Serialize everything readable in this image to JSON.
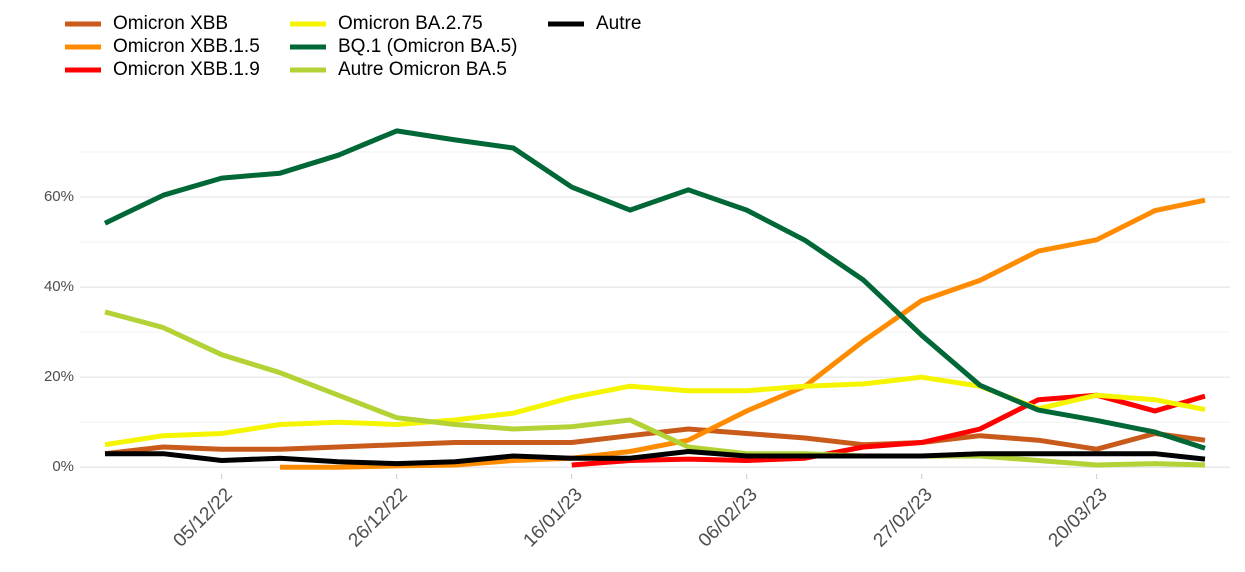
{
  "chart_data": {
    "type": "line",
    "x": [
      "2022-11-21",
      "2022-11-28",
      "2022-12-05",
      "2022-12-12",
      "2022-12-19",
      "2022-12-26",
      "2023-01-02",
      "2023-01-09",
      "2023-01-16",
      "2023-01-23",
      "2023-01-30",
      "2023-02-06",
      "2023-02-13",
      "2023-02-20",
      "2023-02-27",
      "2023-03-06",
      "2023-03-13",
      "2023-03-20",
      "2023-03-27",
      "2023-04-02"
    ],
    "series": [
      {
        "name": "Omicron XBB",
        "color": "#c85a1b",
        "values": [
          3,
          4.5,
          4,
          4,
          4.5,
          5,
          5.5,
          5.5,
          5.5,
          7,
          8.5,
          7.5,
          6.5,
          5,
          5.5,
          7,
          6,
          4,
          7.5,
          6
        ]
      },
      {
        "name": "Omicron XBB.1.5",
        "color": "#ff8c00",
        "values": [
          null,
          null,
          null,
          0,
          0,
          0.3,
          0.5,
          1.5,
          2,
          3.5,
          6,
          12.5,
          18,
          28,
          37,
          41.5,
          48,
          50.5,
          57,
          59.3
        ]
      },
      {
        "name": "Omicron XBB.1.9",
        "color": "#ff0000",
        "values": [
          null,
          null,
          null,
          null,
          null,
          null,
          null,
          null,
          0.5,
          1.5,
          1.8,
          1.5,
          2,
          4.5,
          5.5,
          8.5,
          15,
          16,
          12.5,
          15.8
        ]
      },
      {
        "name": "Omicron BA.2.75",
        "color": "#f5f500",
        "values": [
          5,
          7,
          7.5,
          9.5,
          10,
          9.5,
          10.5,
          12,
          15.5,
          18,
          17,
          17,
          18,
          18.5,
          20,
          18,
          13,
          16,
          15,
          12.8
        ]
      },
      {
        "name": "BQ.1 (Omicron BA.5)",
        "color": "#006837",
        "values": [
          54.2,
          60.4,
          64.2,
          65.3,
          69.3,
          74.7,
          72.7,
          70.9,
          62.2,
          57.1,
          61.6,
          57.1,
          50.4,
          41.6,
          29.3,
          18.2,
          12.7,
          10.4,
          7.8,
          4.2
        ]
      },
      {
        "name": "Autre Omicron BA.5",
        "color": "#b2d235",
        "values": [
          34.5,
          31,
          25,
          21,
          16,
          11,
          9.5,
          8.5,
          9,
          10.5,
          4.5,
          3,
          3,
          2.5,
          2.5,
          2.5,
          1.5,
          0.5,
          0.8,
          0.5
        ]
      },
      {
        "name": "Autre",
        "color": "#000000",
        "values": [
          3,
          3,
          1.5,
          2,
          1.2,
          0.8,
          1.2,
          2.5,
          2,
          2,
          3.5,
          2.5,
          2.5,
          2.5,
          2.5,
          3,
          3,
          3,
          3,
          1.8
        ]
      }
    ],
    "xlim": [
      "2022-11-18",
      "2023-04-05"
    ],
    "xticks": [
      {
        "value": "2022-12-05",
        "label": "05/12/22"
      },
      {
        "value": "2022-12-26",
        "label": "26/12/22"
      },
      {
        "value": "2023-01-16",
        "label": "16/01/23"
      },
      {
        "value": "2023-02-06",
        "label": "06/02/23"
      },
      {
        "value": "2023-02-27",
        "label": "27/02/23"
      },
      {
        "value": "2023-03-20",
        "label": "20/03/23"
      }
    ],
    "ylim": [
      -1.5,
      75
    ],
    "yticks": [
      {
        "value": 0,
        "label": "0%"
      },
      {
        "value": 20,
        "label": "20%"
      },
      {
        "value": 40,
        "label": "40%"
      },
      {
        "value": 60,
        "label": "60%"
      }
    ],
    "minor_yticks": [
      10,
      30,
      50,
      70
    ],
    "grid": true,
    "legend": "top-left"
  }
}
